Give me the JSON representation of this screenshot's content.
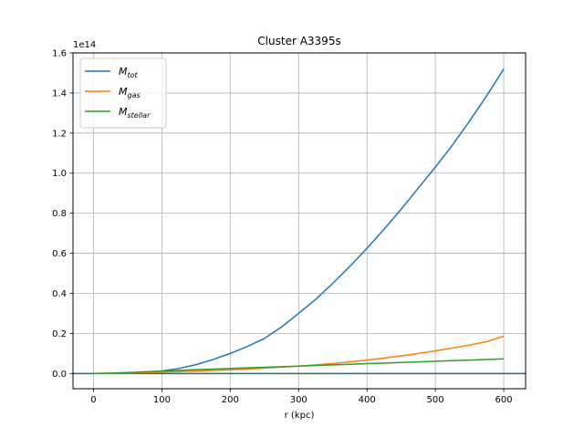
{
  "chart_data": {
    "type": "line",
    "title": "Cluster A3395s",
    "xlabel": "r (kpc)",
    "ylabel": "",
    "y_offset_label": "1e14",
    "xlim": [
      -30,
      632
    ],
    "ylim": [
      -0.076,
      1.6
    ],
    "xticks": [
      0,
      100,
      200,
      300,
      400,
      500,
      600
    ],
    "yticks": [
      0.0,
      0.2,
      0.4,
      0.6,
      0.8,
      1.0,
      1.2,
      1.4,
      1.6
    ],
    "ytick_labels": [
      "0.0",
      "0.2",
      "0.4",
      "0.6",
      "0.8",
      "1.0",
      "1.2",
      "1.4",
      "1.6"
    ],
    "grid": true,
    "legend_position": "top-left",
    "hline": {
      "y": 0,
      "color": "#1f6f7a"
    },
    "x": [
      0,
      25,
      50,
      75,
      100,
      125,
      150,
      175,
      200,
      225,
      250,
      275,
      300,
      325,
      350,
      375,
      400,
      425,
      450,
      475,
      500,
      525,
      550,
      575,
      600
    ],
    "series": [
      {
        "name": "M_tot",
        "legend_main": "M",
        "legend_sub": "tot",
        "color": "#1f77b4",
        "values": [
          0.0,
          0.0003,
          0.0023,
          0.0063,
          0.0128,
          0.025,
          0.044,
          0.07,
          0.1,
          0.135,
          0.175,
          0.232,
          0.3,
          0.37,
          0.45,
          0.535,
          0.625,
          0.72,
          0.82,
          0.925,
          1.03,
          1.14,
          1.26,
          1.385,
          1.52
        ]
      },
      {
        "name": "M_gas",
        "legend_main": "M",
        "legend_sub": "gas",
        "color": "#ff7f0e",
        "values": [
          0.0,
          0.0008,
          0.0025,
          0.0045,
          0.007,
          0.0095,
          0.012,
          0.015,
          0.018,
          0.022,
          0.027,
          0.032,
          0.037,
          0.043,
          0.05,
          0.058,
          0.067,
          0.077,
          0.088,
          0.1,
          0.113,
          0.127,
          0.142,
          0.159,
          0.186
        ]
      },
      {
        "name": "M_stellar",
        "legend_main": "M",
        "legend_sub": "stellar",
        "color": "#2ca02c",
        "values": [
          0.0,
          0.002,
          0.005,
          0.0085,
          0.012,
          0.0155,
          0.019,
          0.022,
          0.025,
          0.028,
          0.031,
          0.034,
          0.037,
          0.04,
          0.043,
          0.046,
          0.049,
          0.052,
          0.055,
          0.058,
          0.061,
          0.064,
          0.067,
          0.07,
          0.073
        ]
      }
    ]
  }
}
